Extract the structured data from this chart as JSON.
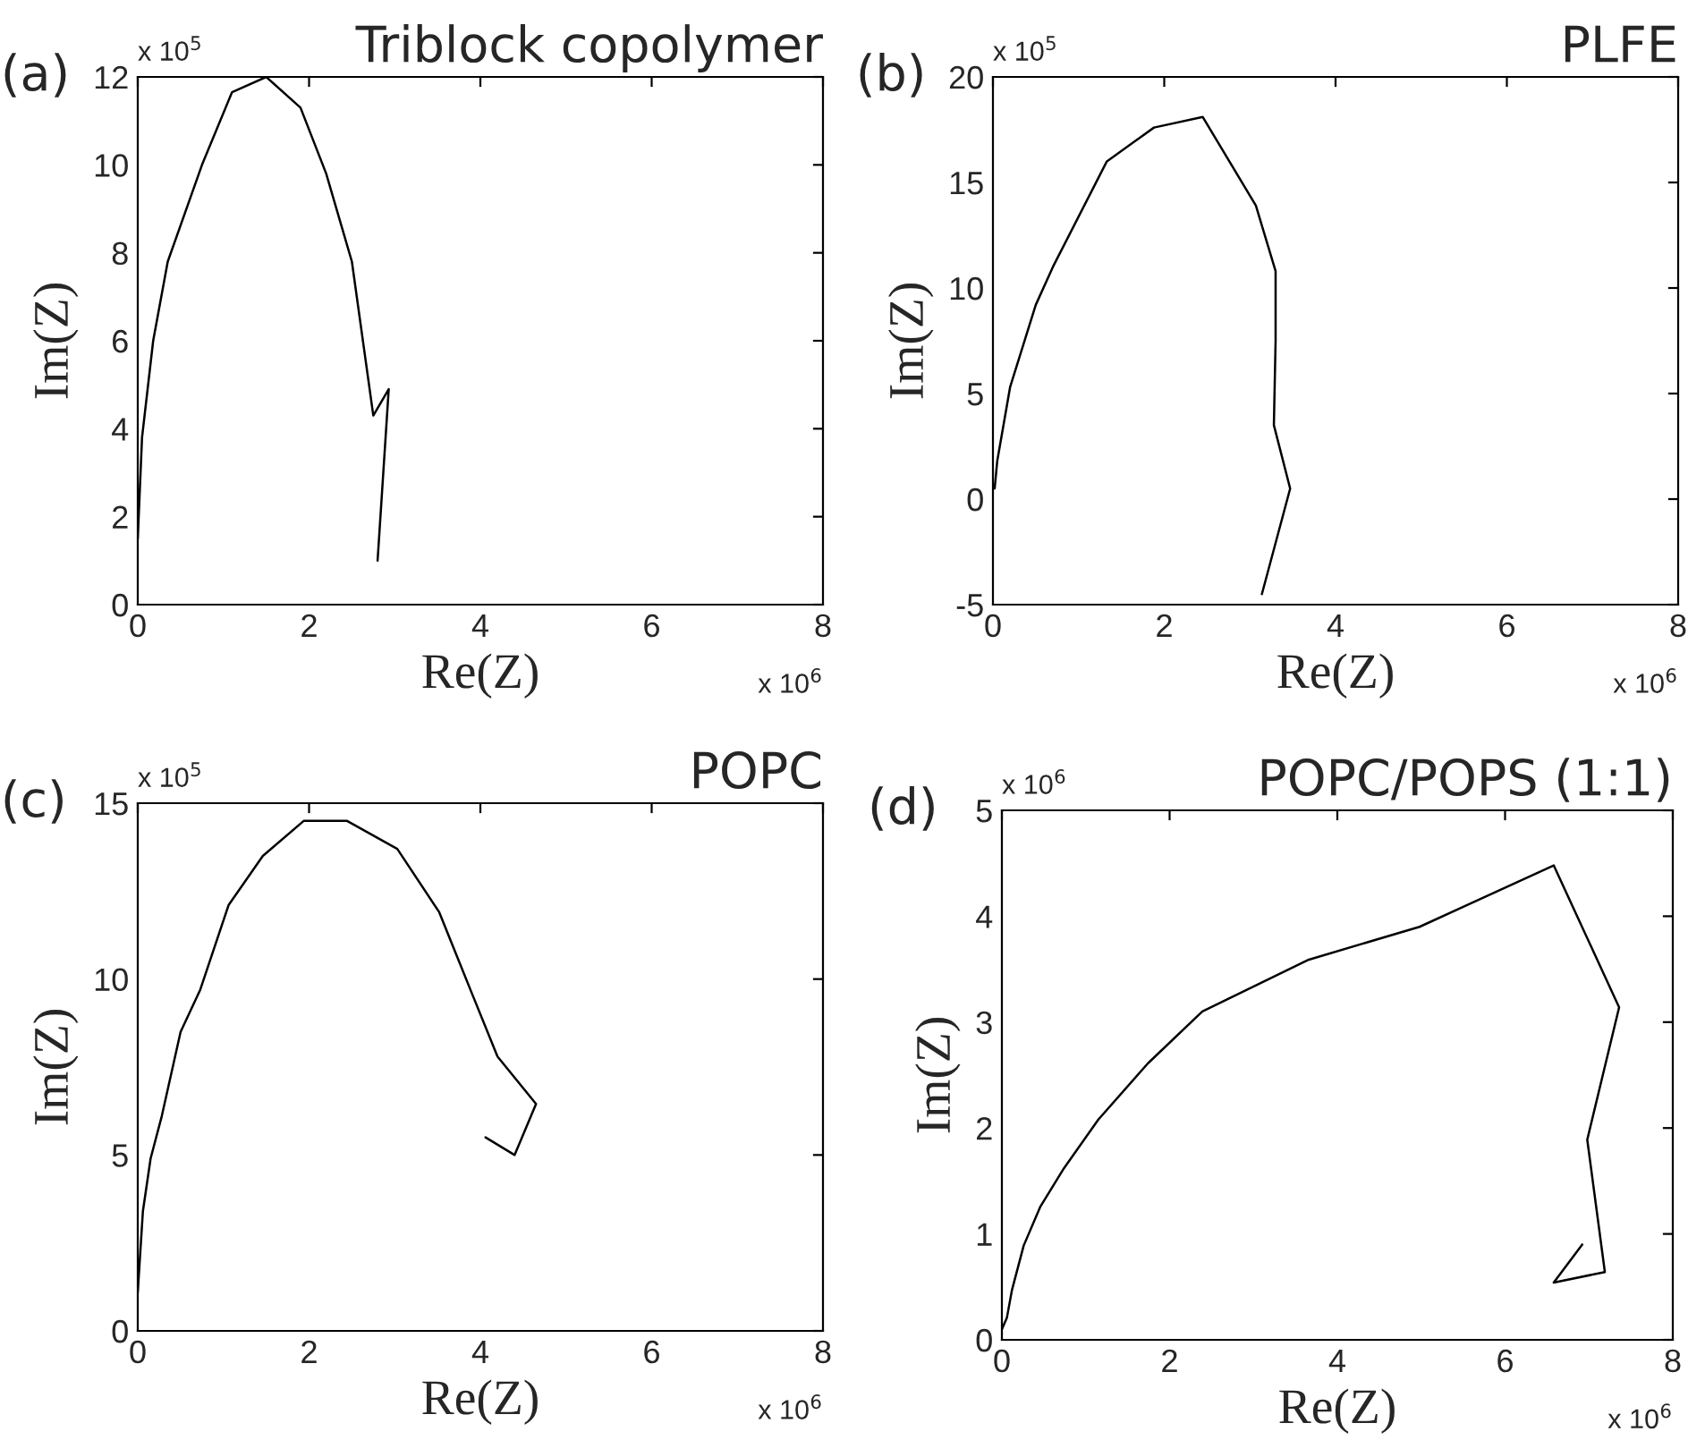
{
  "chart_data": [
    {
      "type": "line",
      "title": "Triblock copolymer",
      "xlabel": "Re(Z)",
      "ylabel": "Im(Z)",
      "annotations": [
        "(a)",
        "x 10$^{5}$",
        "x 10$^{6}$"
      ],
      "xlim": [
        0,
        8
      ],
      "xticks": [
        0,
        2,
        4,
        6,
        8
      ],
      "ylim": [
        0,
        12
      ],
      "yticks": [
        0,
        2,
        4,
        6,
        8,
        10,
        12
      ],
      "grid": false,
      "legend": false,
      "series": [
        {
          "color": "#000000",
          "x": [
            0.0,
            0.05,
            0.18,
            0.35,
            0.75,
            1.1,
            1.5,
            1.9,
            2.2,
            2.5,
            2.75,
            2.93,
            2.8
          ],
          "values": [
            1.5,
            3.8,
            6.0,
            7.8,
            10.0,
            11.65,
            12.0,
            11.3,
            9.8,
            7.8,
            4.3,
            4.9,
            1.0
          ]
        }
      ]
    },
    {
      "type": "line",
      "title": "PLFE",
      "xlabel": "Re(Z)",
      "ylabel": "Im(Z)",
      "annotations": [
        "(b)",
        "x 10$^{5}$",
        "x 10$^{6}$"
      ],
      "xlim": [
        0,
        8
      ],
      "xticks": [
        0,
        2,
        4,
        6,
        8
      ],
      "ylim": [
        -5,
        20
      ],
      "yticks": [
        -5,
        0,
        5,
        10,
        15,
        20
      ],
      "grid": false,
      "legend": false,
      "series": [
        {
          "color": "#000000",
          "x": [
            0.02,
            0.05,
            0.2,
            0.5,
            0.7,
            1.33,
            1.88,
            2.45,
            3.07,
            3.3,
            3.3,
            3.28,
            3.47,
            3.14
          ],
          "values": [
            0.5,
            1.8,
            5.3,
            9.2,
            11.0,
            16.0,
            17.6,
            18.1,
            13.9,
            10.8,
            7.5,
            3.5,
            0.5,
            -4.5
          ]
        }
      ]
    },
    {
      "type": "line",
      "title": "POPC",
      "xlabel": "Re(Z)",
      "ylabel": "Im(Z)",
      "annotations": [
        "(c)",
        "x 10$^{5}$",
        "x 10$^{6}$"
      ],
      "xlim": [
        0,
        8
      ],
      "xticks": [
        0,
        2,
        4,
        6,
        8
      ],
      "ylim": [
        0,
        15
      ],
      "yticks": [
        0,
        5,
        10,
        15
      ],
      "grid": false,
      "legend": false,
      "series": [
        {
          "color": "#000000",
          "x": [
            0.0,
            0.06,
            0.15,
            0.28,
            0.5,
            0.73,
            1.06,
            1.46,
            1.94,
            2.44,
            3.03,
            3.52,
            3.9,
            4.2,
            4.65,
            4.4,
            4.06
          ],
          "values": [
            1.1,
            3.4,
            4.9,
            6.1,
            8.5,
            9.7,
            12.1,
            13.5,
            14.5,
            14.5,
            13.7,
            11.9,
            9.6,
            7.8,
            6.45,
            5.0,
            5.5
          ]
        }
      ]
    },
    {
      "type": "line",
      "title": "POPC/POPS (1:1)",
      "xlabel": "Re(Z)",
      "ylabel": "Im(Z)",
      "annotations": [
        "(d)",
        "x 10$^{6}$",
        "x 10$^{6}$"
      ],
      "xlim": [
        0,
        8
      ],
      "xticks": [
        0,
        2,
        4,
        6,
        8
      ],
      "ylim": [
        0,
        5
      ],
      "yticks": [
        0,
        1,
        2,
        3,
        4,
        5
      ],
      "grid": false,
      "legend": false,
      "series": [
        {
          "color": "#000000",
          "x": [
            0.0,
            0.06,
            0.12,
            0.26,
            0.46,
            0.74,
            1.15,
            1.74,
            2.39,
            3.66,
            4.98,
            6.58,
            7.36,
            6.98,
            7.19,
            6.58,
            6.92
          ],
          "values": [
            0.1,
            0.21,
            0.47,
            0.89,
            1.26,
            1.62,
            2.08,
            2.61,
            3.1,
            3.59,
            3.9,
            4.48,
            3.14,
            1.89,
            0.64,
            0.54,
            0.9
          ]
        }
      ]
    }
  ]
}
